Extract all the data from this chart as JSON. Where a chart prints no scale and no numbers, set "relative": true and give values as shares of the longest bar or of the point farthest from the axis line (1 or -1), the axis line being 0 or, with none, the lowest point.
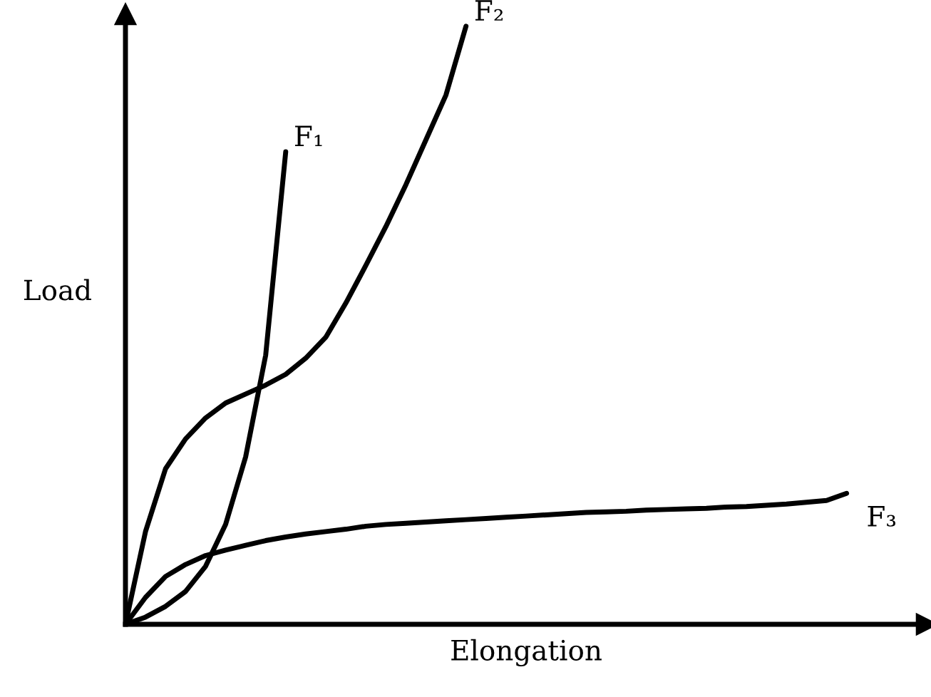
{
  "chart_data": {
    "type": "line",
    "relative": true,
    "xlabel": "Elongation",
    "ylabel": "Load",
    "legend": false,
    "marker": "none",
    "line_style": "solid",
    "categories": [
      null,
      null,
      null,
      null,
      null,
      null,
      null,
      null,
      null,
      null,
      null,
      null,
      null,
      null,
      null,
      null,
      null,
      null,
      null,
      null,
      null,
      null,
      null,
      null,
      null,
      null,
      null,
      null,
      null,
      null,
      null,
      null,
      null,
      null,
      null,
      null,
      null,
      null,
      null,
      null,
      null
    ],
    "series": [
      {
        "name": "F₁",
        "color": "#000000",
        "values": [
          0,
          0.012,
          0.03,
          0.055,
          0.097,
          0.167,
          0.28,
          0.45,
          0.79,
          null,
          null,
          null,
          null,
          null,
          null,
          null,
          null,
          null,
          null,
          null,
          null,
          null,
          null,
          null,
          null,
          null,
          null,
          null,
          null,
          null,
          null,
          null,
          null,
          null,
          null,
          null,
          null,
          null,
          null,
          null,
          null
        ]
      },
      {
        "name": "F₂",
        "color": "#000000",
        "values": [
          0,
          0.155,
          0.26,
          0.31,
          0.345,
          0.37,
          0.385,
          0.4,
          0.418,
          0.445,
          0.48,
          0.537,
          0.6,
          0.665,
          0.735,
          0.81,
          0.885,
          1.0,
          null,
          null,
          null,
          null,
          null,
          null,
          null,
          null,
          null,
          null,
          null,
          null,
          null,
          null,
          null,
          null,
          null,
          null,
          null,
          null,
          null,
          null,
          null
        ]
      },
      {
        "name": "F₃",
        "color": "#000000",
        "values": [
          0,
          0.045,
          0.08,
          0.1,
          0.115,
          0.124,
          0.132,
          0.14,
          0.146,
          0.151,
          0.155,
          0.159,
          0.164,
          0.167,
          0.169,
          0.171,
          0.173,
          0.175,
          0.177,
          0.179,
          0.181,
          0.183,
          0.185,
          0.187,
          0.188,
          0.189,
          0.191,
          0.192,
          0.193,
          0.194,
          0.196,
          0.197,
          0.199,
          0.201,
          0.204,
          0.207,
          0.219,
          null,
          null,
          null,
          null
        ]
      }
    ]
  }
}
